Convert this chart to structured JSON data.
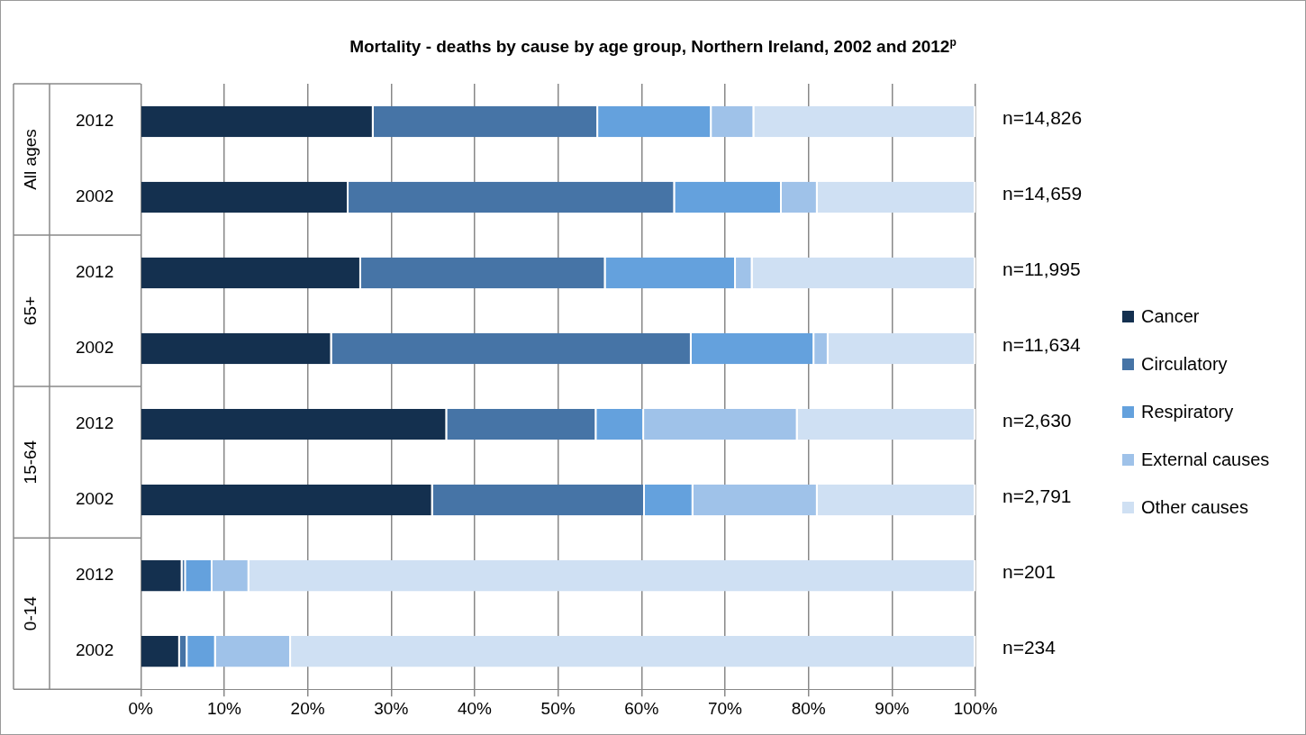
{
  "chart_data": {
    "type": "bar",
    "orientation": "horizontal",
    "stacked": true,
    "title": "Mortality - deaths by cause by age group, Northern Ireland, 2002 and 2012$^{p}$",
    "categories": [
      "2012",
      "2002",
      "2012",
      "2002",
      "2012",
      "2002",
      "2012",
      "2002"
    ],
    "series": [
      {
        "name": "Cancer",
        "color": "#14304f",
        "values": [
          27.9,
          24.9,
          26.4,
          22.9,
          36.7,
          35.0,
          5.0,
          4.7
        ]
      },
      {
        "name": "Circulatory",
        "color": "#4674a6",
        "values": [
          26.9,
          39.1,
          29.3,
          43.1,
          17.9,
          25.4,
          0.4,
          0.9
        ]
      },
      {
        "name": "Respiratory",
        "color": "#64a1dd",
        "values": [
          13.6,
          12.8,
          15.6,
          14.7,
          5.7,
          5.8,
          3.2,
          3.4
        ]
      },
      {
        "name": "External causes",
        "color": "#9fc2e9",
        "values": [
          5.1,
          4.3,
          2.0,
          1.7,
          18.4,
          14.9,
          4.4,
          9.0
        ]
      },
      {
        "name": "Other causes",
        "color": "#cfe0f3",
        "values": [
          26.5,
          18.9,
          26.7,
          17.6,
          21.3,
          18.9,
          87.0,
          82.0
        ]
      }
    ],
    "annotations": [
      "All ages",
      "65+",
      "15-64",
      "0-14",
      "n=14,826",
      "n=14,659",
      "n=11,995",
      "n=11,634",
      "n=2,630",
      "n=2,791",
      "n=201",
      "n=234"
    ],
    "xlim": [
      0,
      100
    ],
    "xticks": [
      {
        "value": 0,
        "label": "0%"
      },
      {
        "value": 10,
        "label": "10%"
      },
      {
        "value": 20,
        "label": "20%"
      },
      {
        "value": 30,
        "label": "30%"
      },
      {
        "value": 40,
        "label": "40%"
      },
      {
        "value": 50,
        "label": "50%"
      },
      {
        "value": 60,
        "label": "60%"
      },
      {
        "value": 70,
        "label": "70%"
      },
      {
        "value": 80,
        "label": "80%"
      },
      {
        "value": 90,
        "label": "90%"
      },
      {
        "value": 100,
        "label": "100%"
      }
    ],
    "grid": "x",
    "legend": "right"
  }
}
